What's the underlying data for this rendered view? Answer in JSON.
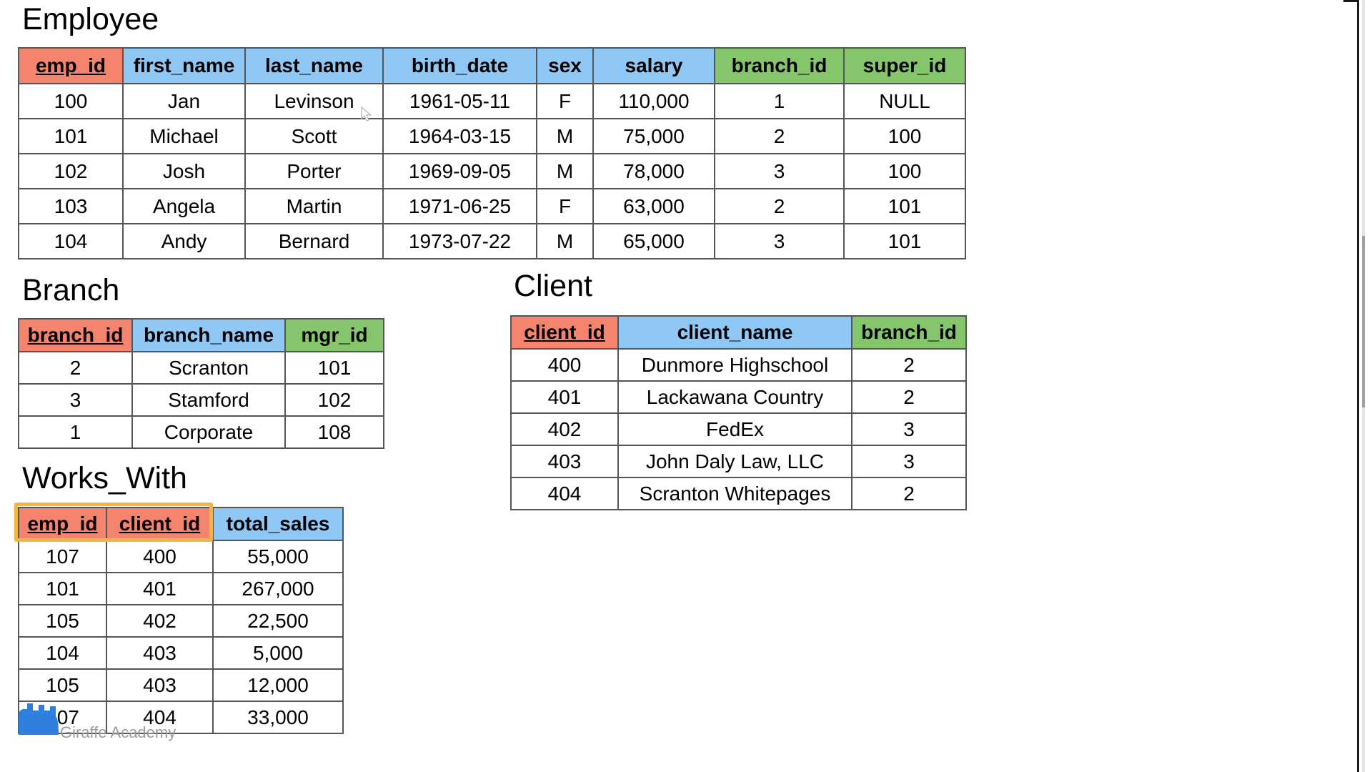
{
  "employee": {
    "title": "Employee",
    "headers": [
      "emp_id",
      "first_name",
      "last_name",
      "birth_date",
      "sex",
      "salary",
      "branch_id",
      "super_id"
    ],
    "header_types": [
      "pk",
      "attr",
      "attr",
      "attr",
      "attr",
      "attr",
      "fk",
      "fk"
    ],
    "rows": [
      [
        "100",
        "Jan",
        "Levinson",
        "1961-05-11",
        "F",
        "110,000",
        "1",
        "NULL"
      ],
      [
        "101",
        "Michael",
        "Scott",
        "1964-03-15",
        "M",
        "75,000",
        "2",
        "100"
      ],
      [
        "102",
        "Josh",
        "Porter",
        "1969-09-05",
        "M",
        "78,000",
        "3",
        "100"
      ],
      [
        "103",
        "Angela",
        "Martin",
        "1971-06-25",
        "F",
        "63,000",
        "2",
        "101"
      ],
      [
        "104",
        "Andy",
        "Bernard",
        "1973-07-22",
        "M",
        "65,000",
        "3",
        "101"
      ]
    ]
  },
  "branch": {
    "title": "Branch",
    "headers": [
      "branch_id",
      "branch_name",
      "mgr_id"
    ],
    "header_types": [
      "pk",
      "attr",
      "fk"
    ],
    "rows": [
      [
        "2",
        "Scranton",
        "101"
      ],
      [
        "3",
        "Stamford",
        "102"
      ],
      [
        "1",
        "Corporate",
        "108"
      ]
    ]
  },
  "client": {
    "title": "Client",
    "headers": [
      "client_id",
      "client_name",
      "branch_id"
    ],
    "header_types": [
      "pk",
      "attr",
      "fk"
    ],
    "rows": [
      [
        "400",
        "Dunmore Highschool",
        "2"
      ],
      [
        "401",
        "Lackawana Country",
        "2"
      ],
      [
        "402",
        "FedEx",
        "3"
      ],
      [
        "403",
        "John Daly Law, LLC",
        "3"
      ],
      [
        "404",
        "Scranton Whitepages",
        "2"
      ]
    ]
  },
  "works_with": {
    "title": "Works_With",
    "headers": [
      "emp_id",
      "client_id",
      "total_sales"
    ],
    "header_types": [
      "pk",
      "pk",
      "attr"
    ],
    "rows": [
      [
        "107",
        "400",
        "55,000"
      ],
      [
        "101",
        "401",
        "267,000"
      ],
      [
        "105",
        "402",
        "22,500"
      ],
      [
        "104",
        "403",
        "5,000"
      ],
      [
        "105",
        "403",
        "12,000"
      ],
      [
        "107",
        "404",
        "33,000"
      ]
    ]
  },
  "watermark": {
    "text": "Giraffe Academy"
  },
  "colors": {
    "primary_key_header": "#f4846e",
    "attribute_header": "#8fc7f5",
    "foreign_key_header": "#85c56b",
    "composite_key_highlight": "#f5b43a",
    "logo": "#2f7fe0"
  },
  "icons": {
    "logo": "giraffe-logo-icon",
    "cursor": "mouse-cursor-icon"
  }
}
